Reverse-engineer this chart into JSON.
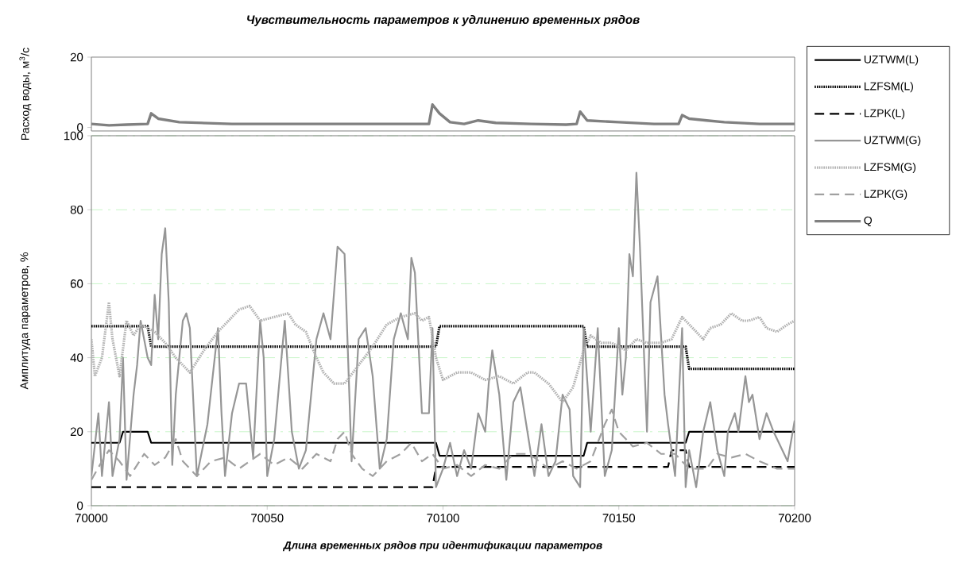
{
  "chart_data": [
    {
      "type": "line",
      "title": "Чувствительность параметров к удлинению временных рядов",
      "ylabel": "Расход воды, м$^{3}$/с",
      "xlim": [
        70000,
        70200
      ],
      "ylim": [
        -1,
        20
      ],
      "yticks": [
        0,
        20
      ],
      "tick_labels": "y",
      "grid": false,
      "legend": "right",
      "series": [
        {
          "name": "Q",
          "color": "#808080",
          "line_style": "solid",
          "x": [
            70000,
            70005,
            70010,
            70016,
            70017,
            70019,
            70025,
            70040,
            70060,
            70080,
            70096,
            70097,
            70099,
            70102,
            70106,
            70110,
            70115,
            70125,
            70135,
            70138,
            70139,
            70141,
            70150,
            70160,
            70167,
            70168,
            70170,
            70175,
            70180,
            70190,
            70200
          ],
          "values": [
            1,
            0.6,
            0.8,
            1,
            4,
            2.5,
            1.5,
            1,
            1,
            1,
            1,
            6.5,
            4,
            1.5,
            1,
            2,
            1.3,
            1,
            0.8,
            1,
            4.5,
            2,
            1.5,
            1,
            1,
            3.5,
            2.5,
            2,
            1.5,
            1,
            1
          ]
        }
      ]
    },
    {
      "type": "line",
      "xlabel": "Длина временных рядов при идентификации параметров",
      "ylabel": "Амплитуда параметров, %",
      "xlim": [
        70000,
        70200
      ],
      "ylim": [
        0,
        100
      ],
      "xticks": [
        70000,
        70050,
        70100,
        70150,
        70200
      ],
      "yticks": [
        0,
        20,
        40,
        60,
        80,
        100
      ],
      "grid": "y",
      "legend": "right",
      "series": [
        {
          "name": "UZTWM(L)",
          "color": "#000000",
          "line_style": "solid",
          "x": [
            70000,
            70008,
            70009,
            70016,
            70017,
            70098,
            70099,
            70140,
            70141,
            70169,
            70170,
            70200
          ],
          "values": [
            17,
            17,
            20,
            20,
            17,
            17,
            13.5,
            13.5,
            17,
            17,
            20,
            20
          ]
        },
        {
          "name": "LZFSM(L)",
          "color": "#000000",
          "line_style": "dotted",
          "x": [
            70000,
            70016,
            70017,
            70098,
            70099,
            70140,
            70141,
            70169,
            70170,
            70200
          ],
          "values": [
            48.5,
            48.5,
            43,
            43,
            48.5,
            48.5,
            43,
            43,
            37,
            37
          ]
        },
        {
          "name": "LZPK(L)",
          "color": "#000000",
          "line_style": "dashed",
          "x": [
            70000,
            70097,
            70098,
            70164,
            70165,
            70169,
            70170,
            70200
          ],
          "values": [
            5,
            5,
            10.5,
            10.5,
            15,
            15,
            10.5,
            10.5
          ]
        },
        {
          "name": "UZTWM(G)",
          "color": "#969696",
          "line_style": "solid",
          "x": [
            70000,
            70002,
            70003,
            70005,
            70006,
            70008,
            70009,
            70010,
            70012,
            70013,
            70014,
            70016,
            70017,
            70018,
            70019,
            70020,
            70021,
            70022,
            70023,
            70024,
            70026,
            70027,
            70028,
            70030,
            70033,
            70036,
            70037,
            70038,
            70040,
            70042,
            70044,
            70046,
            70048,
            70049,
            70050,
            70052,
            70055,
            70057,
            70059,
            70061,
            70064,
            70066,
            70068,
            70070,
            70072,
            70074,
            70076,
            70078,
            70080,
            70082,
            70084,
            70086,
            70088,
            70090,
            70091,
            70092,
            70094,
            70096,
            70097,
            70098,
            70100,
            70102,
            70104,
            70106,
            70108,
            70110,
            70112,
            70113,
            70114,
            70116,
            70118,
            70120,
            70122,
            70124,
            70126,
            70128,
            70130,
            70132,
            70134,
            70136,
            70137,
            70139,
            70140,
            70142,
            70144,
            70146,
            70148,
            70150,
            70151,
            70152,
            70153,
            70154,
            70155,
            70156,
            70158,
            70159,
            70161,
            70163,
            70164,
            70166,
            70168,
            70169,
            70170,
            70172,
            70174,
            70176,
            70178,
            70180,
            70181,
            70183,
            70184,
            70186,
            70187,
            70188,
            70190,
            70192,
            70194,
            70198,
            70200
          ],
          "values": [
            8,
            25,
            8,
            28,
            8,
            18,
            40,
            7,
            30,
            38,
            50,
            40,
            38,
            57,
            45,
            68,
            75,
            55,
            11,
            30,
            50,
            52,
            48,
            8,
            22,
            48,
            25,
            8,
            25,
            33,
            33,
            13,
            50,
            40,
            8,
            18,
            50,
            20,
            10,
            15,
            45,
            52,
            45,
            70,
            68,
            12,
            45,
            48,
            35,
            10,
            18,
            45,
            52,
            45,
            67,
            63,
            25,
            25,
            48,
            5,
            10,
            17,
            8,
            15,
            10,
            25,
            20,
            33,
            42,
            30,
            7,
            28,
            32,
            20,
            8,
            22,
            8,
            12,
            30,
            26,
            8,
            5,
            48,
            20,
            48,
            8,
            15,
            48,
            30,
            40,
            68,
            62,
            90,
            70,
            20,
            55,
            62,
            30,
            22,
            8,
            48,
            5,
            15,
            5,
            20,
            28,
            15,
            8,
            20,
            25,
            20,
            35,
            28,
            30,
            18,
            25,
            20,
            12,
            23
          ]
        },
        {
          "name": "LZFSM(G)",
          "color": "#b0b0b0",
          "line_style": "dotted",
          "x": [
            70000,
            70001,
            70003,
            70005,
            70006,
            70008,
            70010,
            70012,
            70014,
            70016,
            70018,
            70021,
            70024,
            70028,
            70032,
            70036,
            70040,
            70042,
            70045,
            70048,
            70052,
            70056,
            70058,
            70061,
            70064,
            70066,
            70069,
            70072,
            70076,
            70080,
            70084,
            70088,
            70092,
            70094,
            70096,
            70098,
            70100,
            70104,
            70108,
            70112,
            70116,
            70120,
            70124,
            70126,
            70130,
            70134,
            70137,
            70140,
            70142,
            70145,
            70148,
            70152,
            70155,
            70158,
            70162,
            70165,
            70168,
            70170,
            70172,
            70174,
            70176,
            70179,
            70182,
            70185,
            70187,
            70190,
            70192,
            70195,
            70198,
            70200
          ],
          "values": [
            45,
            35,
            40,
            55,
            45,
            35,
            50,
            46,
            49,
            48,
            47,
            44,
            40,
            36,
            42,
            47,
            51,
            53,
            54,
            50,
            51,
            52,
            49,
            47,
            40,
            36,
            33,
            33,
            38,
            43,
            49,
            51,
            52,
            50,
            51,
            40,
            34,
            36,
            36,
            34,
            35,
            33,
            36,
            36,
            33,
            28,
            32,
            42,
            46,
            44,
            44,
            42,
            45,
            44,
            44,
            45,
            51,
            49,
            47,
            45,
            48,
            49,
            52,
            50,
            50,
            51,
            48,
            47,
            49,
            50
          ]
        },
        {
          "name": "LZPK(G)",
          "color": "#a0a0a0",
          "line_style": "dashed",
          "x": [
            70000,
            70003,
            70005,
            70008,
            70011,
            70015,
            70018,
            70021,
            70024,
            70026,
            70030,
            70034,
            70038,
            70042,
            70045,
            70048,
            70052,
            70056,
            70060,
            70064,
            70068,
            70070,
            70072,
            70074,
            70077,
            70080,
            70084,
            70088,
            70091,
            70094,
            70097,
            70100,
            70104,
            70108,
            70112,
            70116,
            70120,
            70124,
            70126,
            70130,
            70134,
            70138,
            70142,
            70146,
            70148,
            70150,
            70154,
            70158,
            70162,
            70166,
            70170,
            70175,
            70178,
            70182,
            70186,
            70190,
            70195,
            70200
          ],
          "values": [
            7,
            12,
            15,
            12,
            8,
            14,
            11,
            13,
            18,
            12,
            8,
            12,
            13,
            10,
            12,
            14,
            11,
            13,
            10,
            14,
            12,
            18,
            20,
            14,
            10,
            8,
            12,
            14,
            17,
            12,
            14,
            10,
            11,
            8,
            11,
            10,
            14,
            14,
            13,
            10,
            12,
            10,
            12,
            22,
            26,
            20,
            16,
            17,
            14,
            14,
            10,
            10,
            14,
            13,
            14,
            12,
            10,
            10
          ]
        }
      ]
    }
  ]
}
